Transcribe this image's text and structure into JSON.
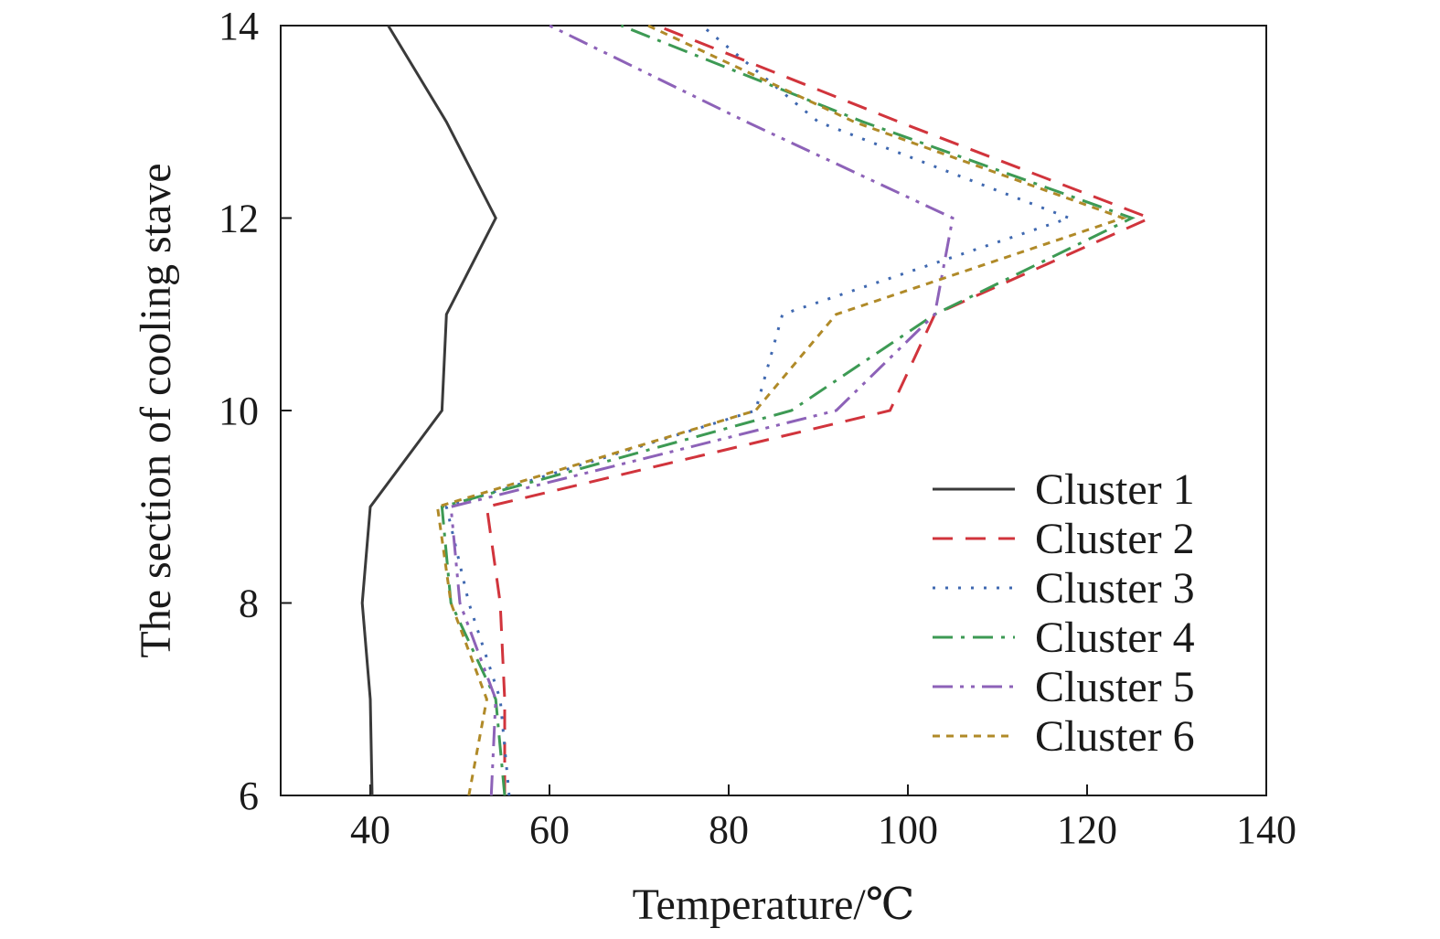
{
  "chart_data": {
    "type": "line",
    "xlabel": "Temperature/℃",
    "ylabel": "The section of cooling stave",
    "xlim": [
      30,
      140
    ],
    "ylim": [
      6,
      14
    ],
    "xticks": [
      40,
      60,
      80,
      100,
      120,
      140
    ],
    "yticks": [
      6,
      8,
      10,
      12,
      14
    ],
    "grid": false,
    "legend_position": "bottom-right",
    "y": [
      6,
      7,
      8,
      9,
      10,
      11,
      12,
      13,
      14
    ],
    "series": [
      {
        "name": "Cluster 1",
        "color": "#3a3a3a",
        "dash": "solid",
        "values": [
          40.2,
          40.0,
          39.1,
          40.0,
          48.0,
          48.5,
          54.0,
          48.5,
          42.0
        ]
      },
      {
        "name": "Cluster 2",
        "color": "#d1343c",
        "dash": "dashed",
        "values": [
          55.0,
          55.0,
          54.5,
          53.0,
          98.0,
          103.0,
          127.0,
          99.0,
          72.0
        ]
      },
      {
        "name": "Cluster 3",
        "color": "#3f68b0",
        "dash": "dotted",
        "values": [
          55.5,
          54.5,
          51.0,
          48.5,
          83.0,
          86.0,
          118.0,
          90.0,
          77.0
        ]
      },
      {
        "name": "Cluster 4",
        "color": "#3d9a54",
        "dash": "dashdot",
        "values": [
          55.0,
          54.0,
          49.0,
          48.0,
          87.0,
          103.0,
          125.0,
          95.0,
          68.0
        ]
      },
      {
        "name": "Cluster 5",
        "color": "#8d62b8",
        "dash": "dashdotdot",
        "values": [
          53.5,
          54.0,
          50.0,
          49.0,
          92.0,
          103.0,
          105.0,
          82.0,
          60.0
        ]
      },
      {
        "name": "Cluster 6",
        "color": "#b08a28",
        "dash": "shortdash",
        "values": [
          51.0,
          53.0,
          49.0,
          47.5,
          83.0,
          92.0,
          124.0,
          94.0,
          71.0
        ]
      }
    ]
  }
}
